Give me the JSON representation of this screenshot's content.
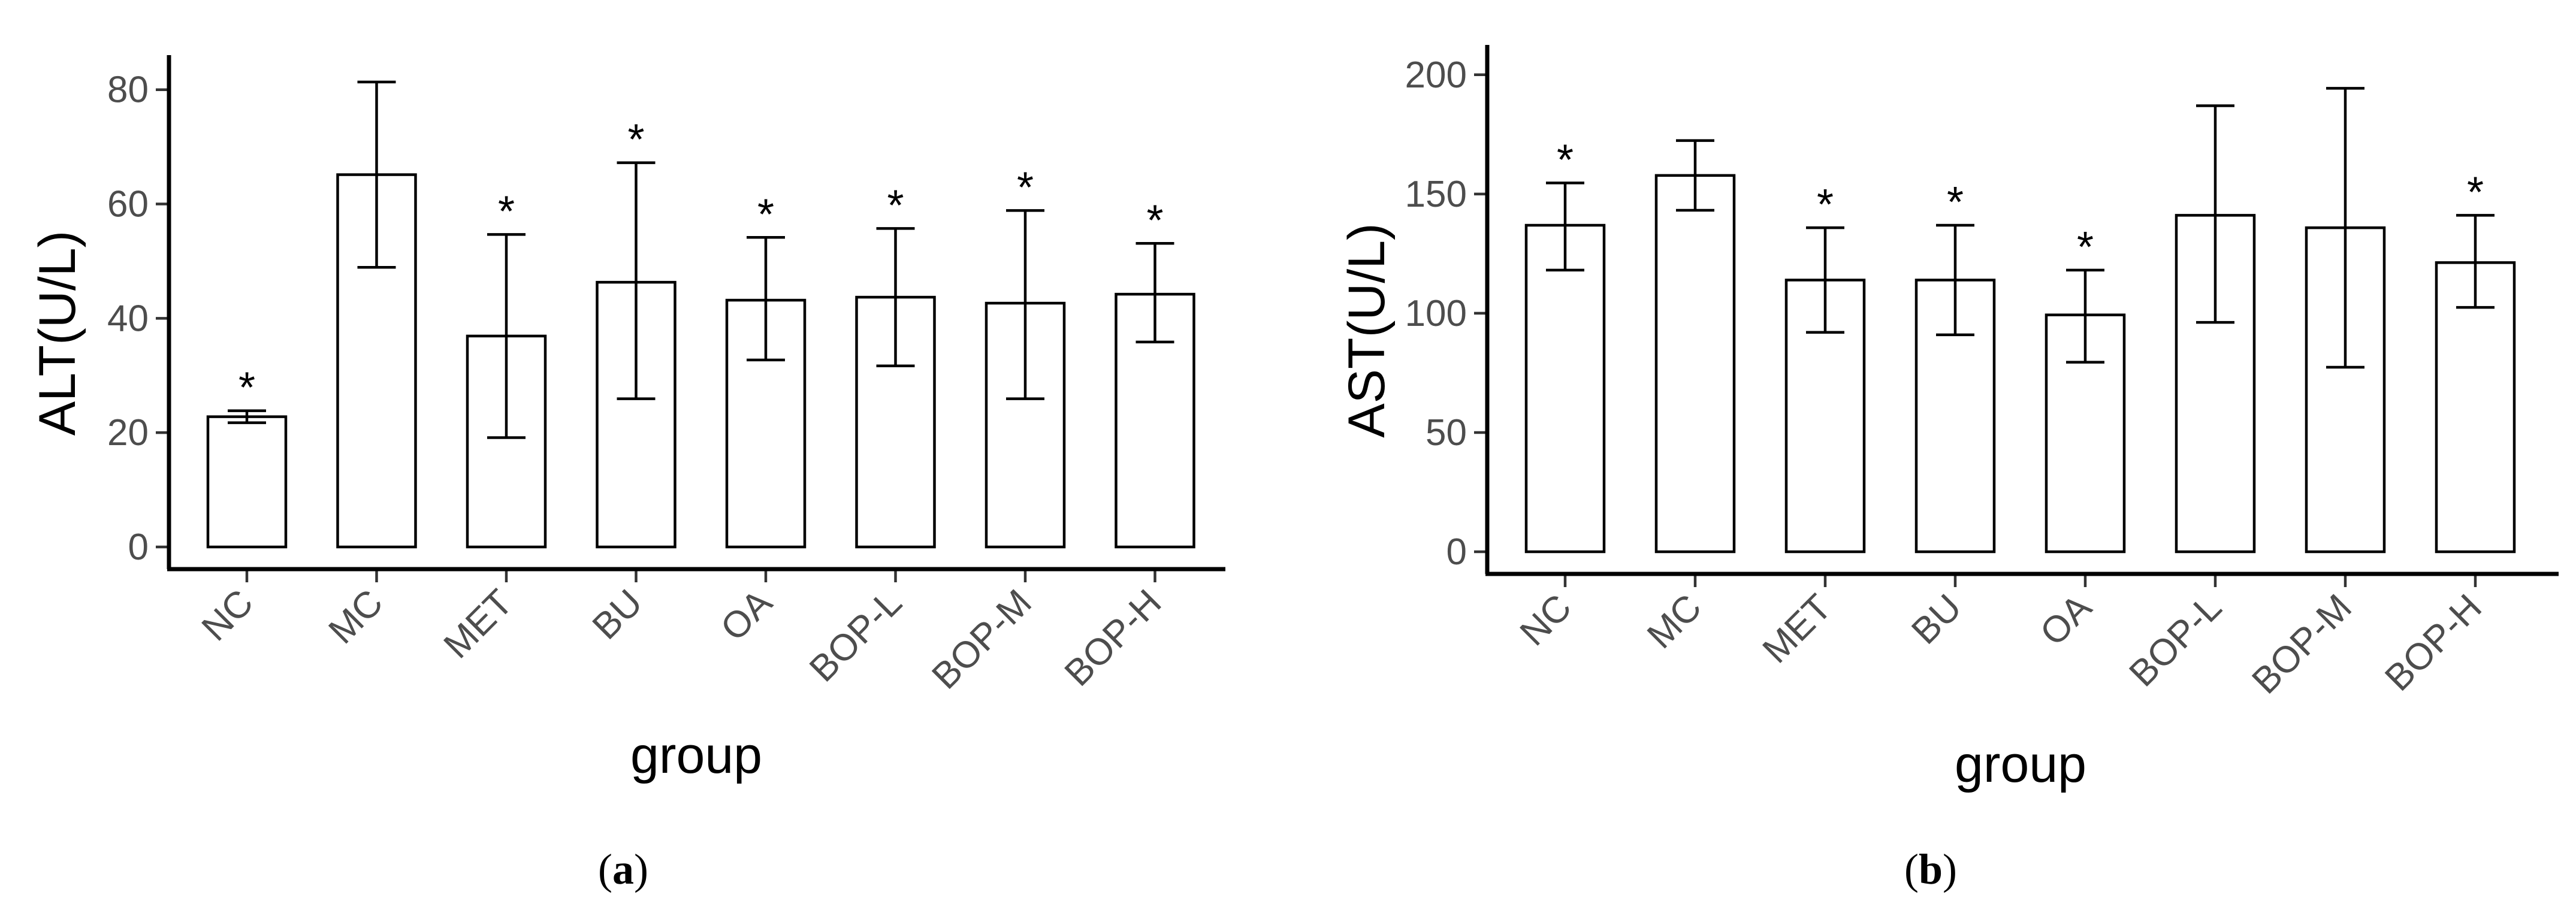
{
  "chart_data": [
    {
      "type": "bar",
      "panel_label": "(a)",
      "panel_letter": "a",
      "categories": [
        "NC",
        "MC",
        "MET",
        "BU",
        "OA",
        "BOP-L",
        "BOP-M",
        "BOP-H"
      ],
      "values": [
        25.5,
        66,
        39,
        48,
        45,
        45.5,
        44.5,
        46
      ],
      "error_upper": [
        26.5,
        81.5,
        56,
        68,
        55.5,
        57,
        60,
        54.5
      ],
      "error_lower": [
        24.5,
        50.5,
        22,
        28.5,
        35,
        34,
        28.5,
        38
      ],
      "significance": [
        "*",
        "",
        "*",
        "*",
        "*",
        "*",
        "*",
        "*"
      ],
      "xlabel": "group",
      "ylabel": "ALT(U/L)",
      "ylim": [
        0,
        85
      ],
      "yticks": [
        0,
        20,
        40,
        60,
        80
      ],
      "grid": false,
      "legend": "none"
    },
    {
      "type": "bar",
      "panel_label": "(b)",
      "panel_letter": "b",
      "categories": [
        "NC",
        "MC",
        "MET",
        "BU",
        "OA",
        "BOP-L",
        "BOP-M",
        "BOP-H"
      ],
      "values": [
        140,
        160,
        118,
        118,
        104,
        144,
        139,
        125
      ],
      "error_upper": [
        157,
        174,
        139,
        140,
        122,
        188,
        195,
        144
      ],
      "error_lower": [
        122,
        146,
        97,
        96,
        85,
        101,
        83,
        107
      ],
      "significance": [
        "*",
        "",
        "*",
        "*",
        "*",
        "",
        "",
        "*"
      ],
      "xlabel": "group",
      "ylabel": "AST(U/L)",
      "ylim": [
        0,
        210
      ],
      "yticks": [
        0,
        50,
        100,
        150,
        200
      ],
      "grid": false,
      "legend": "none"
    }
  ]
}
